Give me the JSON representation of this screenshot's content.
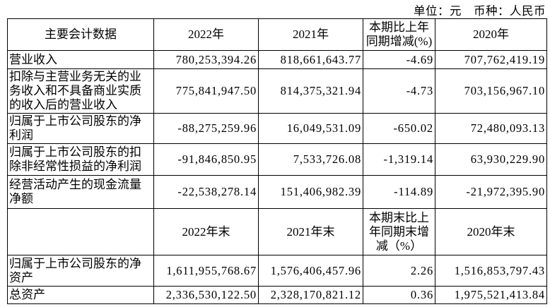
{
  "meta": {
    "unit_note": "单位：元　币种：人民币"
  },
  "table": {
    "header_annual": {
      "col1": "主要会计数据",
      "col2": "2022年",
      "col3": "2021年",
      "col4_lines": [
        "本期比上年",
        "同期增减(%)"
      ],
      "col5": "2020年"
    },
    "rows_annual": [
      {
        "label": "营业收入",
        "v2022": "780,253,394.26",
        "v2021": "818,661,643.77",
        "chg": "-4.69",
        "v2020": "707,762,419.19"
      },
      {
        "label": "扣除与主营业务无关的业务收入和不具备商业实质的收入后的营业收入",
        "v2022": "775,841,947.50",
        "v2021": "814,375,321.94",
        "chg": "-4.73",
        "v2020": "703,156,967.10"
      },
      {
        "label": "归属于上市公司股东的净利润",
        "v2022": "-88,275,259.96",
        "v2021": "16,049,531.09",
        "chg": "-650.02",
        "v2020": "72,480,093.13"
      },
      {
        "label": "归属于上市公司股东的扣除非经常性损益的净利润",
        "v2022": "-91,846,850.95",
        "v2021": "7,533,726.08",
        "chg": "-1,319.14",
        "v2020": "63,930,229.90"
      },
      {
        "label": "经营活动产生的现金流量净额",
        "v2022": "-22,538,278.14",
        "v2021": "151,406,982.39",
        "chg": "-114.89",
        "v2020": "-21,972,395.90"
      }
    ],
    "header_period_end": {
      "col1": "",
      "col2": "2022年末",
      "col3": "2021年末",
      "col4_lines": [
        "本期末比上",
        "年同期末增",
        "减（%）"
      ],
      "col5": "2020年末"
    },
    "rows_period_end": [
      {
        "label": "归属于上市公司股东的净资产",
        "v2022": "1,611,955,768.67",
        "v2021": "1,576,406,457.96",
        "chg": "2.26",
        "v2020": "1,516,853,797.43"
      },
      {
        "label": "总资产",
        "v2022": "2,336,530,122.50",
        "v2021": "2,328,170,821.12",
        "chg": "0.36",
        "v2020": "1,975,521,413.84"
      }
    ]
  }
}
